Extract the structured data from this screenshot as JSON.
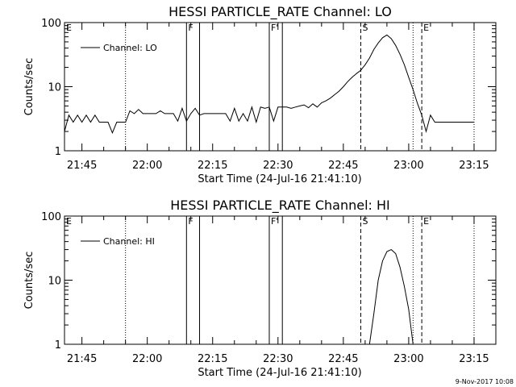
{
  "footer_date": "9-Nov-2017 10:08",
  "chart_data": [
    {
      "type": "line",
      "title": "HESSI PARTICLE_RATE Channel: LO",
      "xlabel": "Start Time (24-Jul-16 21:41:10)",
      "ylabel": "Counts/sec",
      "yscale": "log",
      "ylim": [
        1,
        100
      ],
      "y_ticks": [
        "1",
        "10",
        "100"
      ],
      "xlim": [
        "21:41",
        "23:20"
      ],
      "x_ticks": [
        "21:45",
        "22:00",
        "22:15",
        "22:30",
        "22:45",
        "23:00",
        "23:15"
      ],
      "legend": "Channel: LO",
      "legend_position": "top-left",
      "markers": [
        {
          "label": "E",
          "time": "21:41",
          "style": "dotted"
        },
        {
          "label": "",
          "time": "21:55",
          "style": "dotted"
        },
        {
          "label": "F",
          "time": "22:09",
          "style": "solid"
        },
        {
          "label": "",
          "time": "22:12",
          "style": "solid"
        },
        {
          "label": "F'",
          "time": "22:28",
          "style": "solid"
        },
        {
          "label": "",
          "time": "22:31",
          "style": "solid"
        },
        {
          "label": "S",
          "time": "22:49",
          "style": "dashed"
        },
        {
          "label": "",
          "time": "23:01",
          "style": "dotted"
        },
        {
          "label": "E",
          "time": "23:03",
          "style": "dashed"
        },
        {
          "label": "",
          "time": "23:15",
          "style": "dotted"
        }
      ],
      "segments": [
        {
          "x": [
            "21:41",
            "21:42",
            "21:43",
            "21:44",
            "21:45",
            "21:46",
            "21:47",
            "21:48",
            "21:49",
            "21:50",
            "21:51",
            "21:52",
            "21:53",
            "21:54",
            "21:55",
            "21:56",
            "21:57",
            "21:58",
            "21:59",
            "22:00",
            "22:01",
            "22:02",
            "22:03",
            "22:04",
            "22:05",
            "22:06",
            "22:07",
            "22:08",
            "22:09",
            "22:10",
            "22:11",
            "22:12",
            "22:13",
            "22:14",
            "22:15",
            "22:16",
            "22:17",
            "22:18",
            "22:19",
            "22:20",
            "22:21",
            "22:22",
            "22:23",
            "22:24",
            "22:25",
            "22:26",
            "22:27",
            "22:28",
            "22:29",
            "22:30",
            "22:31",
            "22:32",
            "22:33",
            "22:34",
            "22:35",
            "22:36",
            "22:37",
            "22:38",
            "22:39",
            "22:40",
            "22:41",
            "22:42",
            "22:43",
            "22:44",
            "22:45",
            "22:46",
            "22:47",
            "22:48",
            "22:49",
            "22:50",
            "22:51",
            "22:52",
            "22:53",
            "22:54",
            "22:55",
            "22:56",
            "22:57",
            "22:58",
            "22:59",
            "23:00",
            "23:01",
            "23:02",
            "23:03",
            "23:04",
            "23:05",
            "23:06",
            "23:07",
            "23:08",
            "23:09",
            "23:10",
            "23:11",
            "23:12",
            "23:13",
            "23:14",
            "23:15"
          ],
          "y": [
            2.0,
            3.6,
            2.8,
            3.6,
            2.8,
            3.6,
            2.8,
            3.6,
            2.8,
            2.8,
            2.8,
            1.9,
            2.8,
            2.8,
            2.8,
            4.2,
            3.8,
            4.4,
            3.8,
            3.8,
            3.8,
            3.8,
            4.2,
            3.8,
            3.8,
            3.8,
            2.9,
            4.6,
            2.9,
            3.8,
            4.6,
            3.6,
            3.8,
            3.8,
            3.8,
            3.8,
            3.8,
            3.8,
            2.9,
            4.6,
            2.9,
            3.8,
            2.9,
            4.8,
            2.8,
            4.8,
            4.6,
            4.8,
            2.9,
            4.8,
            4.8,
            4.8,
            4.6,
            4.8,
            5.0,
            5.2,
            4.7,
            5.4,
            4.8,
            5.6,
            6.0,
            6.6,
            7.5,
            8.5,
            10,
            12,
            14,
            16,
            18,
            22,
            28,
            38,
            48,
            58,
            64,
            56,
            44,
            32,
            22,
            14,
            9.0,
            5.5,
            3.6,
            2.0,
            3.6,
            2.8,
            2.8,
            2.8,
            2.8,
            2.8,
            2.8,
            2.8,
            2.8,
            2.8,
            2.8
          ]
        }
      ]
    },
    {
      "type": "line",
      "title": "HESSI PARTICLE_RATE Channel: HI",
      "xlabel": "Start Time (24-Jul-16 21:41:10)",
      "ylabel": "Counts/sec",
      "yscale": "log",
      "ylim": [
        1,
        100
      ],
      "y_ticks": [
        "1",
        "10",
        "100"
      ],
      "xlim": [
        "21:41",
        "23:20"
      ],
      "x_ticks": [
        "21:45",
        "22:00",
        "22:15",
        "22:30",
        "22:45",
        "23:00",
        "23:15"
      ],
      "legend": "Channel: HI",
      "legend_position": "top-left",
      "markers": [
        {
          "label": "E",
          "time": "21:41",
          "style": "dotted"
        },
        {
          "label": "",
          "time": "21:55",
          "style": "dotted"
        },
        {
          "label": "F",
          "time": "22:09",
          "style": "solid"
        },
        {
          "label": "",
          "time": "22:12",
          "style": "solid"
        },
        {
          "label": "F'",
          "time": "22:28",
          "style": "solid"
        },
        {
          "label": "",
          "time": "22:31",
          "style": "solid"
        },
        {
          "label": "S",
          "time": "22:49",
          "style": "dashed"
        },
        {
          "label": "",
          "time": "23:01",
          "style": "dotted"
        },
        {
          "label": "E",
          "time": "23:03",
          "style": "dashed"
        },
        {
          "label": "",
          "time": "23:15",
          "style": "dotted"
        }
      ],
      "segments": [
        {
          "x": [
            "22:51",
            "22:52",
            "22:53",
            "22:54",
            "22:55",
            "22:56",
            "22:57",
            "22:58",
            "22:59",
            "23:00",
            "23:01"
          ],
          "y": [
            1.0,
            3.0,
            10,
            20,
            28,
            30,
            26,
            16,
            8,
            3.5,
            1.0
          ]
        }
      ]
    }
  ]
}
